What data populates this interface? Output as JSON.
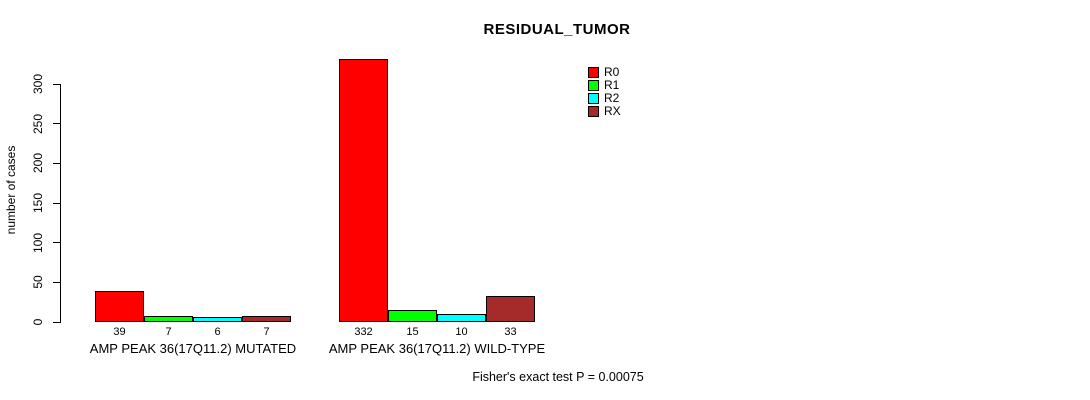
{
  "title": "RESIDUAL_TUMOR",
  "footer_note": "Fisher's exact test P = 0.00075",
  "chart_data": {
    "type": "bar",
    "title": "RESIDUAL_TUMOR",
    "xlabel": "",
    "ylabel": "number of cases",
    "ylim": [
      0,
      332
    ],
    "yticks": [
      0,
      50,
      100,
      150,
      200,
      250,
      300
    ],
    "grid": false,
    "legend_position": "top-right",
    "categories": [
      "AMP PEAK 36(17Q11.2) MUTATED",
      "AMP PEAK 36(17Q11.2) WILD-TYPE"
    ],
    "series": [
      {
        "name": "R0",
        "color": "#ff0000",
        "values": [
          39,
          332
        ]
      },
      {
        "name": "R1",
        "color": "#00ff00",
        "values": [
          7,
          15
        ]
      },
      {
        "name": "R2",
        "color": "#00ffff",
        "values": [
          6,
          10
        ]
      },
      {
        "name": "RX",
        "color": "#a52a2a",
        "values": [
          7,
          33
        ]
      }
    ],
    "annotation": "Fisher's exact test P = 0.00075"
  }
}
